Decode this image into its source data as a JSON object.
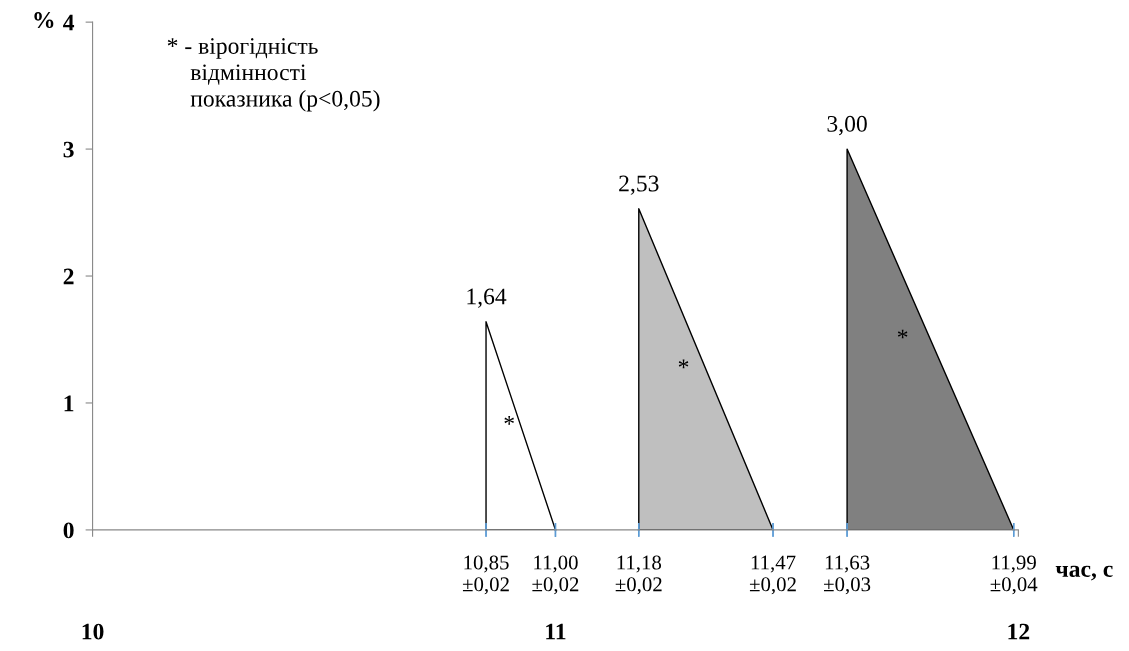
{
  "chart_data": {
    "type": "area",
    "ylabel": "%",
    "xlabel": "час, с",
    "xlim": [
      10,
      12
    ],
    "ylim": [
      0,
      4
    ],
    "yticks": [
      0,
      1,
      2,
      3,
      4
    ],
    "xticks": [
      10,
      11,
      12
    ],
    "series": [
      {
        "color": "#ffffff",
        "x": [
          10.85,
          10.85,
          11.0
        ],
        "values": [
          0,
          1.64,
          0
        ],
        "value_labels": [
          null,
          "1,64",
          null
        ]
      },
      {
        "color": "#bfbfbf",
        "x": [
          11.18,
          11.18,
          11.47
        ],
        "values": [
          0,
          2.53,
          0
        ],
        "value_labels": [
          null,
          "2,53",
          null
        ]
      },
      {
        "color": "#808080",
        "x": [
          11.63,
          11.63,
          11.99
        ],
        "values": [
          0,
          3.0,
          0
        ],
        "value_labels": [
          null,
          "3,00",
          null
        ]
      }
    ],
    "annotations": [
      "* - вірогідність\n    відмінності\n    показника (p<0,05)",
      "*",
      "*",
      "*",
      {
        "text": "10,85\n±0,02",
        "x": 10.85,
        "y": 0
      },
      {
        "text": "11,00\n±0,02",
        "x": 11.0,
        "y": 0
      },
      {
        "text": "11,18\n±0,02",
        "x": 11.18,
        "y": 0
      },
      {
        "text": "11,47\n±0,02",
        "x": 11.47,
        "y": 0
      },
      {
        "text": "11,63\n±0,03",
        "x": 11.63,
        "y": 0
      },
      {
        "text": "11,99\n±0,04",
        "x": 11.99,
        "y": 0
      }
    ],
    "grid": false,
    "legend": false
  }
}
